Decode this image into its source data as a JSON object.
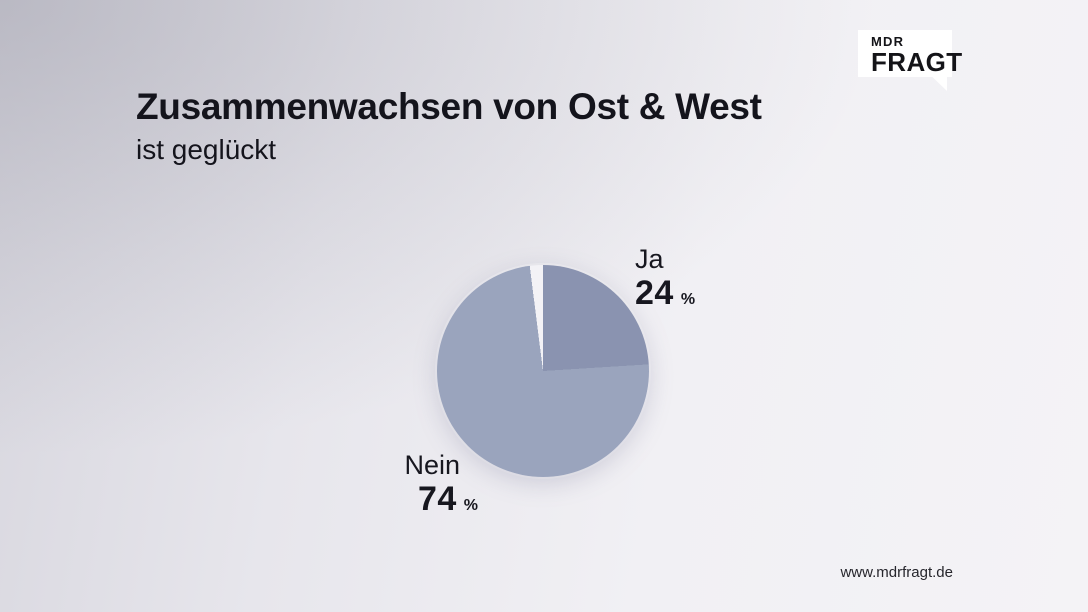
{
  "header": {
    "title": "Zusammenwachsen von Ost & West",
    "subtitle": "ist geglückt"
  },
  "logo": {
    "line1": "MDR",
    "line2": "FRAGT"
  },
  "chart_data": {
    "type": "pie",
    "title": "Zusammenwachsen von Ost & West ist geglückt",
    "labels": [
      "Ja",
      "Nein"
    ],
    "values": [
      24,
      74
    ],
    "unit": "%",
    "colors": [
      "#8a93b0",
      "#9aa4bd"
    ],
    "gap_color": "#f3f2f6",
    "start_angle_deg": 0,
    "direction": "clockwise",
    "unlabeled_gap_percent": 2,
    "legend_position": "callouts"
  },
  "callouts": {
    "ja": {
      "label": "Ja",
      "value": "24",
      "unit": "%"
    },
    "nein": {
      "label": "Nein",
      "value": "74",
      "unit": "%"
    }
  },
  "footer": {
    "url": "www.mdrfragt.de"
  }
}
